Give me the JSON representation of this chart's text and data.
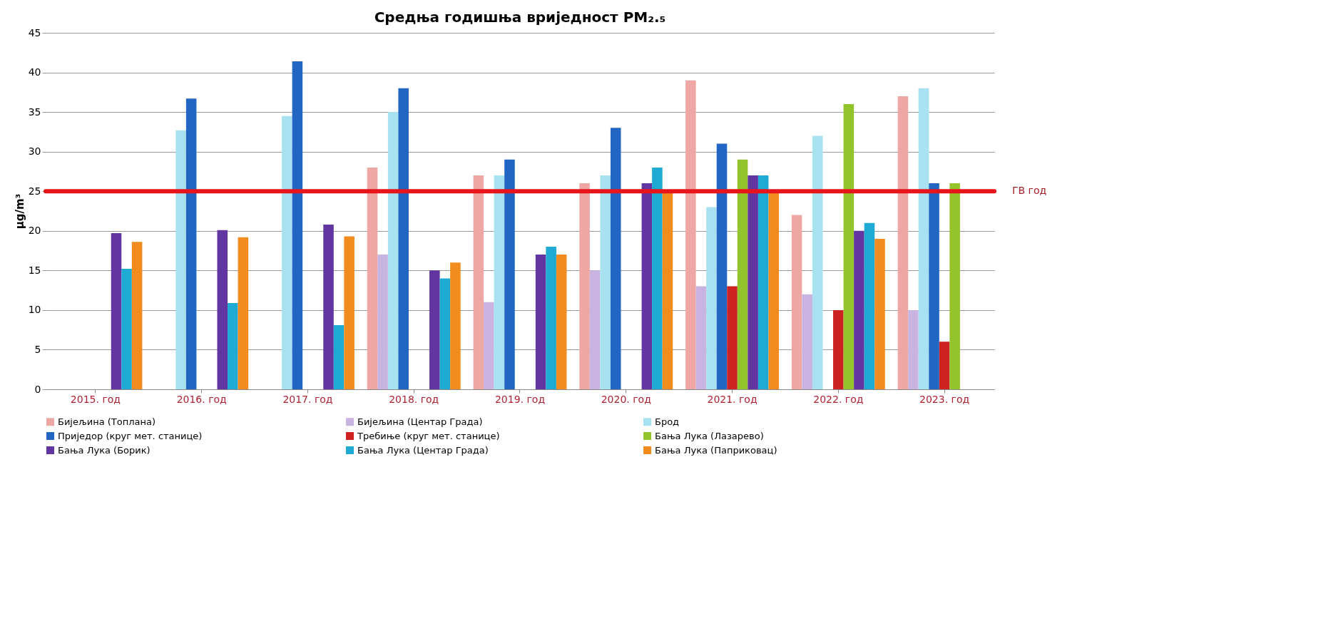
{
  "chart_data": {
    "type": "bar",
    "title": "Средња годишња вриједност PM₂.₅",
    "ylabel": "µg/m³",
    "categories": [
      "2015. год",
      "2016. год",
      "2017. год",
      "2018. год",
      "2019. год",
      "2020. год",
      "2021. год",
      "2022. год",
      "2023. год"
    ],
    "series": [
      {
        "name": "Бијељина (Топлана)",
        "color": "#eea7a4",
        "values": [
          null,
          null,
          null,
          28,
          27,
          26,
          39,
          22,
          37
        ]
      },
      {
        "name": "Бијељина (Центар Града)",
        "color": "#c9b3e0",
        "values": [
          null,
          null,
          null,
          17,
          11,
          15,
          13,
          12,
          10
        ]
      },
      {
        "name": "Брод",
        "color": "#a8e2f0",
        "values": [
          null,
          32.7,
          34.5,
          35,
          27,
          27,
          23,
          32,
          38
        ]
      },
      {
        "name": "Приједор (круг мет. станице)",
        "color": "#2266c4",
        "values": [
          null,
          36.7,
          41.4,
          38,
          29,
          33,
          31,
          null,
          26
        ]
      },
      {
        "name": "Требиње (круг мет. станице)",
        "color": "#cc2222",
        "values": [
          null,
          null,
          null,
          null,
          null,
          null,
          13,
          10,
          6
        ]
      },
      {
        "name": "Бања Лука (Лазарево)",
        "color": "#94c42c",
        "values": [
          null,
          null,
          null,
          null,
          null,
          null,
          29,
          36,
          26
        ]
      },
      {
        "name": "Бања Лука (Борик)",
        "color": "#6236a0",
        "values": [
          19.7,
          20.1,
          20.8,
          15,
          17,
          26,
          27,
          20,
          null
        ]
      },
      {
        "name": "Бања Лука (Центар Града)",
        "color": "#1eaad2",
        "values": [
          15.2,
          10.9,
          8.1,
          14,
          18,
          28,
          27,
          21,
          null
        ]
      },
      {
        "name": "Бања Лука (Паприковац)",
        "color": "#f28c1e",
        "values": [
          18.6,
          19.2,
          19.3,
          16,
          17,
          25,
          25,
          19,
          null
        ]
      }
    ],
    "ylim": [
      0,
      45
    ],
    "yticks": [
      0,
      5,
      10,
      15,
      20,
      25,
      30,
      35,
      40,
      45
    ],
    "grid": "y",
    "legend": "bottom",
    "ref_lines": [
      {
        "axis": "y",
        "value": 25,
        "label": "ГВ год",
        "color": "#e8141c"
      }
    ]
  }
}
